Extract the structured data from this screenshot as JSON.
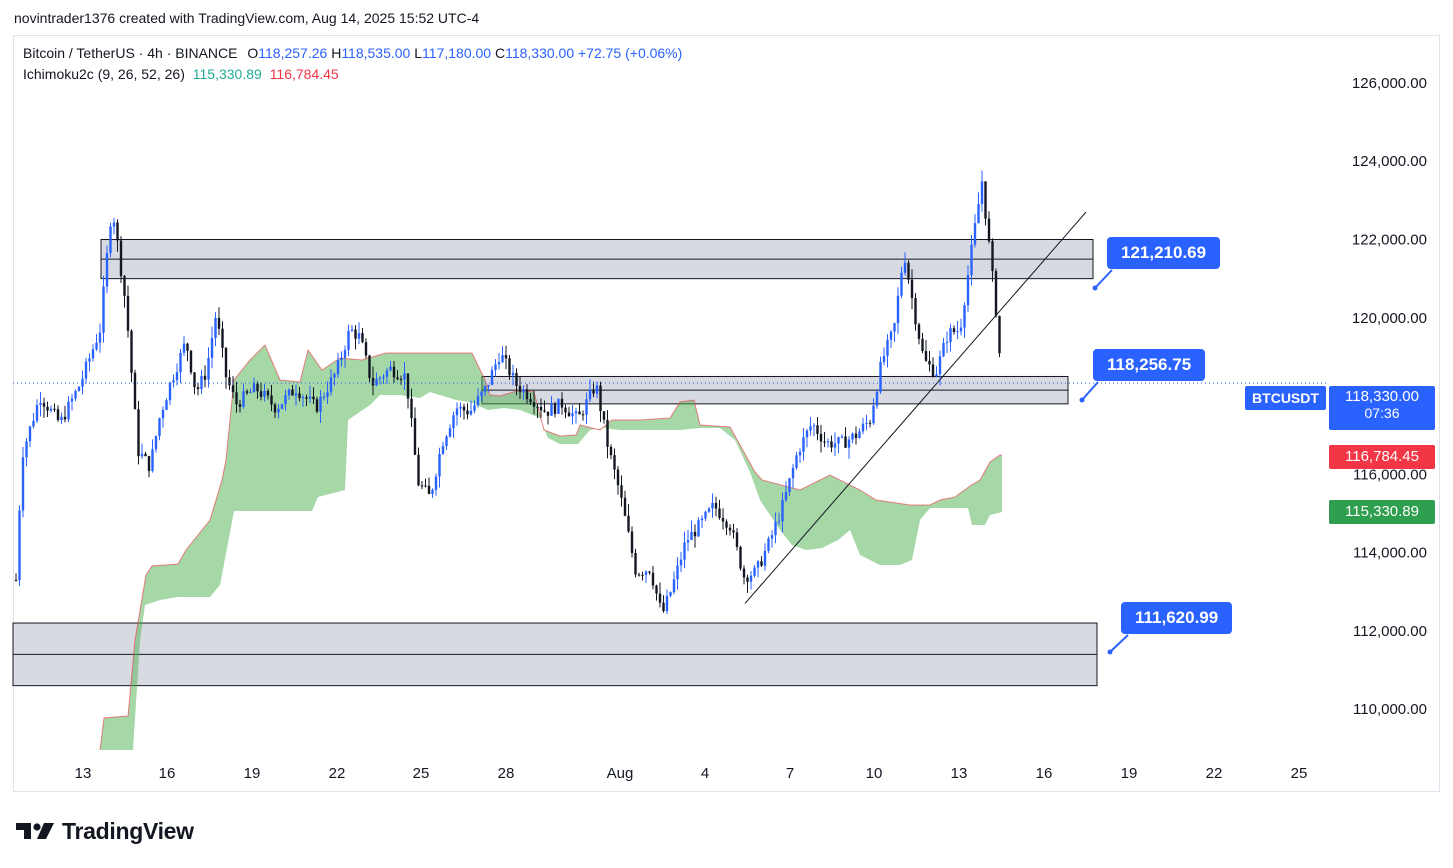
{
  "header": {
    "attribution": "novintrader1376 created with TradingView.com, Aug 14, 2025 15:52 UTC-4"
  },
  "legend": {
    "symbol": "Bitcoin / TetherUS · 4h · BINANCE",
    "open_label": "O",
    "open": "118,257.26",
    "high_label": "H",
    "high": "118,535.00",
    "low_label": "L",
    "low": "117,180.00",
    "close_label": "C",
    "close": "118,330.00",
    "change": "+72.75 (+0.06%)",
    "indicator": "Ichimoku2c (9, 26, 52, 26)",
    "ind_value1": "115,330.89",
    "ind_value2": "116,784.45"
  },
  "price_axis": [
    "126,000.00",
    "124,000.00",
    "122,000.00",
    "120,000.00",
    "116,000.00",
    "114,000.00",
    "112,000.00",
    "110,000.00"
  ],
  "time_axis": [
    "13",
    "16",
    "19",
    "22",
    "25",
    "28",
    "Aug",
    "4",
    "7",
    "10",
    "13",
    "16",
    "19",
    "22",
    "25"
  ],
  "tags": {
    "symbol": "BTCUSDT",
    "last_price": "118,330.00",
    "countdown": "07:36",
    "kijun": "116,784.45",
    "tenkan": "115,330.89"
  },
  "callouts": {
    "top": "121,210.69",
    "mid": "118,256.75",
    "low": "111,620.99"
  },
  "footer": {
    "brand": "TradingView"
  },
  "colors": {
    "up": "#2962ff",
    "down": "#131722",
    "cloud": "#4caf50",
    "cloud_edge": "#f23645",
    "zone": "#d1d4dc",
    "accent": "#2962ff"
  },
  "chart_data": {
    "type": "candlestick",
    "y_unit": "USDT",
    "ylim": [
      108700,
      127200
    ],
    "zones": [
      {
        "low": 121000,
        "high": 122000
      },
      {
        "low": 117800,
        "high": 118500
      },
      {
        "low": 110600,
        "high": 112200
      }
    ],
    "trendline": {
      "from": [
        "Aug 5",
        112700
      ],
      "to": [
        "Aug 17",
        122700
      ]
    },
    "last_price": 118330
  }
}
